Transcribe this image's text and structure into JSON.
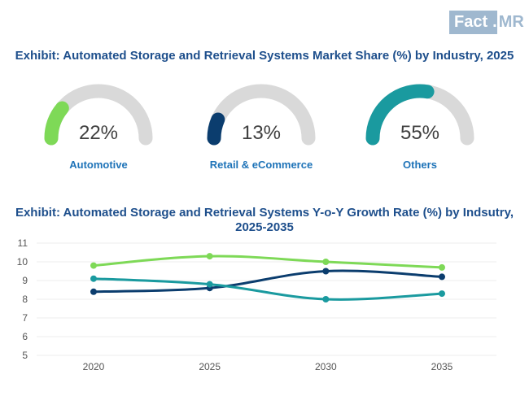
{
  "brand": {
    "name_part1": "Fact",
    "dot": ".",
    "name_part2": "MR"
  },
  "exhibit1": {
    "title": "Exhibit: Automated Storage and Retrieval Systems Market Share (%) by Industry, 2025",
    "gauges": [
      {
        "label": "Automotive",
        "value_text": "22%",
        "value": 22,
        "color": "#7ed957"
      },
      {
        "label": "Retail & eCommerce",
        "value_text": "13%",
        "value": 13,
        "color": "#0b3d6e"
      },
      {
        "label": "Others",
        "value_text": "55%",
        "value": 55,
        "color": "#1a9a9f"
      }
    ],
    "track_color": "#d9d9d9"
  },
  "chart_data": {
    "type": "line",
    "title": "Exhibit: Automated Storage and Retrieval Systems Y-o-Y Growth Rate (%) by Indsutry, 2025-2035",
    "x": [
      "2020",
      "2025",
      "2030",
      "2035"
    ],
    "yticks": [
      "5",
      "6",
      "7",
      "8",
      "9",
      "10",
      "11"
    ],
    "ylim": [
      5,
      11
    ],
    "grid": "horizontal",
    "legend": "none",
    "series": [
      {
        "name": "Automotive",
        "color": "#7ed957",
        "values": [
          9.8,
          10.3,
          10.0,
          9.7
        ]
      },
      {
        "name": "Retail & eCommerce",
        "color": "#0b3d6e",
        "values": [
          8.4,
          8.6,
          9.5,
          9.2
        ]
      },
      {
        "name": "Others",
        "color": "#1a9a9f",
        "values": [
          9.1,
          8.8,
          8.0,
          8.3
        ]
      }
    ]
  }
}
